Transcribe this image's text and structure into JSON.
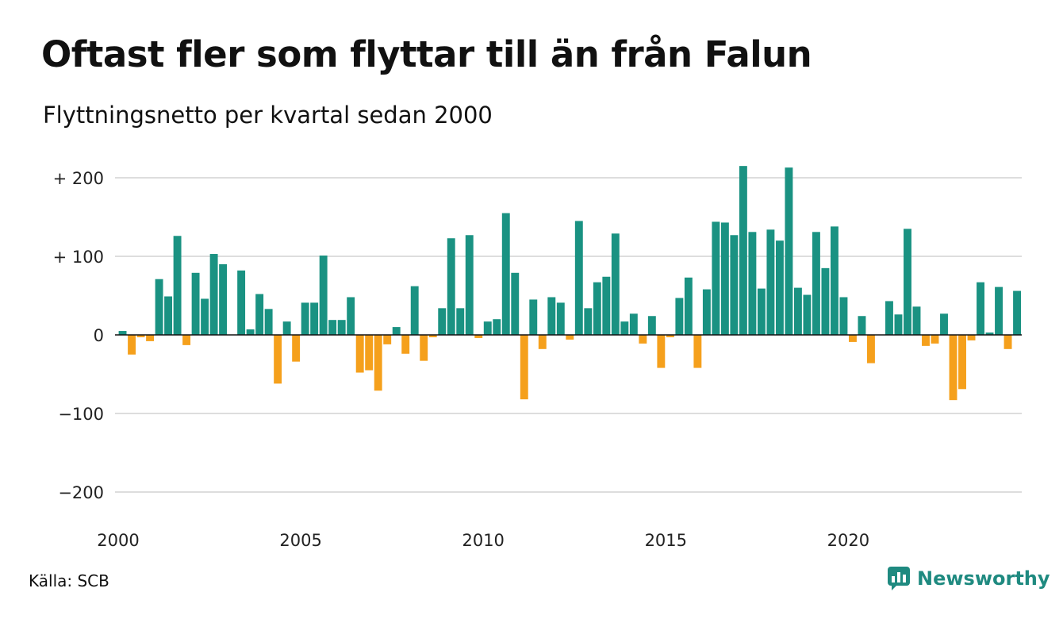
{
  "title": "Oftast fler som flyttar till än från Falun",
  "subtitle": "Flyttningsnetto per kvartal sedan 2000",
  "source": "Källa: SCB",
  "brand": "Newsworthy",
  "colors": {
    "positive": "#1a9282",
    "negative": "#f5a01c",
    "grid": "#dddddd",
    "brand": "#1f8a80"
  },
  "chart_data": {
    "type": "bar",
    "title": "Oftast fler som flyttar till än från Falun",
    "subtitle": "Flyttningsnetto per kvartal sedan 2000",
    "xlabel": "",
    "ylabel": "",
    "ylim": [
      -200,
      200
    ],
    "grid": true,
    "yticks": [
      {
        "value": 200,
        "label": "+ 200"
      },
      {
        "value": 100,
        "label": "+ 100"
      },
      {
        "value": 0,
        "label": "0"
      },
      {
        "value": -100,
        "label": "−100"
      },
      {
        "value": -200,
        "label": "−200"
      }
    ],
    "xticks": [
      {
        "year": 2000,
        "label": "2000"
      },
      {
        "year": 2005,
        "label": "2005"
      },
      {
        "year": 2010,
        "label": "2010"
      },
      {
        "year": 2015,
        "label": "2015"
      },
      {
        "year": 2020,
        "label": "2020"
      }
    ],
    "start_year": 2000,
    "values": [
      5,
      -25,
      -3,
      -8,
      71,
      49,
      126,
      -13,
      79,
      46,
      103,
      90,
      0,
      82,
      7,
      52,
      33,
      -62,
      17,
      -34,
      41,
      41,
      101,
      19,
      19,
      48,
      -48,
      -45,
      -71,
      -12,
      10,
      -24,
      62,
      -33,
      -3,
      34,
      123,
      34,
      127,
      -4,
      17,
      20,
      155,
      79,
      -82,
      45,
      -18,
      48,
      41,
      -6,
      145,
      34,
      67,
      74,
      129,
      17,
      27,
      -11,
      24,
      -42,
      -3,
      47,
      73,
      -42,
      58,
      144,
      143,
      127,
      215,
      131,
      59,
      134,
      120,
      213,
      60,
      51,
      131,
      85,
      138,
      48,
      -9,
      24,
      -36,
      0,
      43,
      26,
      135,
      36,
      -14,
      -11,
      27,
      -83,
      -69,
      -7,
      67,
      3,
      61,
      -18,
      56
    ]
  }
}
